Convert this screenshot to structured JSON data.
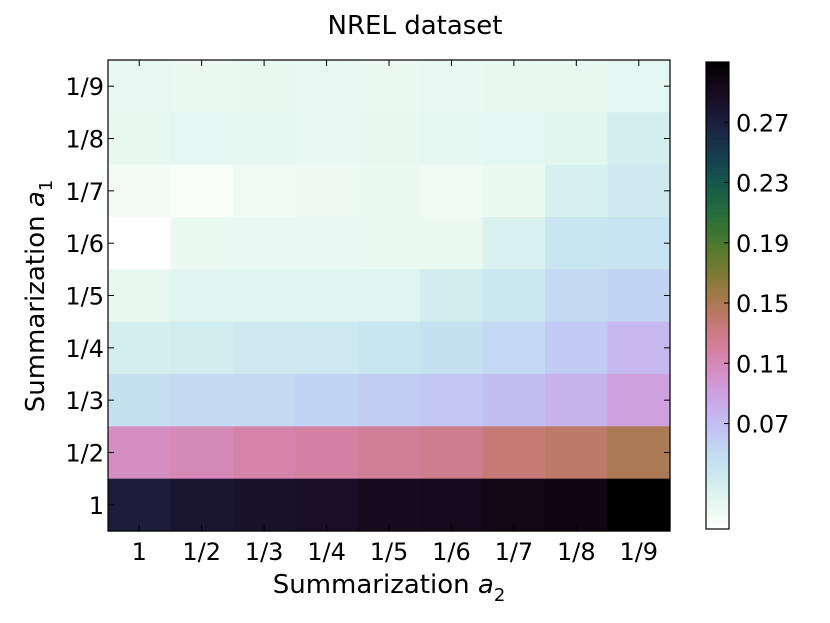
{
  "chart_data": {
    "type": "heatmap",
    "title": "NREL dataset",
    "xlabel": {
      "prefix": "Summarization ",
      "var": "a",
      "sub": "2"
    },
    "ylabel": {
      "prefix": "Summarization ",
      "var": "a",
      "sub": "1"
    },
    "x_categories": [
      "1",
      "1/2",
      "1/3",
      "1/4",
      "1/5",
      "1/6",
      "1/7",
      "1/8",
      "1/9"
    ],
    "y_categories": [
      "1/9",
      "1/8",
      "1/7",
      "1/6",
      "1/5",
      "1/4",
      "1/3",
      "1/2",
      "1"
    ],
    "values": [
      [
        0.015,
        0.014,
        0.016,
        0.015,
        0.014,
        0.015,
        0.016,
        0.016,
        0.018
      ],
      [
        0.016,
        0.018,
        0.017,
        0.015,
        0.016,
        0.017,
        0.018,
        0.019,
        0.03
      ],
      [
        0.008,
        0.004,
        0.01,
        0.012,
        0.013,
        0.01,
        0.013,
        0.028,
        0.035
      ],
      [
        0.001,
        0.014,
        0.015,
        0.015,
        0.014,
        0.014,
        0.025,
        0.04,
        0.042
      ],
      [
        0.016,
        0.02,
        0.021,
        0.02,
        0.021,
        0.032,
        0.038,
        0.05,
        0.055
      ],
      [
        0.03,
        0.033,
        0.036,
        0.036,
        0.04,
        0.045,
        0.052,
        0.062,
        0.075
      ],
      [
        0.045,
        0.05,
        0.05,
        0.055,
        0.06,
        0.065,
        0.07,
        0.078,
        0.09
      ],
      [
        0.105,
        0.11,
        0.115,
        0.118,
        0.122,
        0.126,
        0.135,
        0.14,
        0.15
      ],
      [
        0.272,
        0.278,
        0.282,
        0.285,
        0.29,
        0.292,
        0.295,
        0.298,
        0.31
      ]
    ],
    "colormap": "cubehelix_r",
    "colorbar": {
      "range": [
        0.0,
        0.31
      ],
      "ticks": [
        0.07,
        0.11,
        0.15,
        0.19,
        0.23,
        0.27
      ],
      "tick_labels": [
        "0.07",
        "0.11",
        "0.15",
        "0.19",
        "0.23",
        "0.27"
      ]
    },
    "grid": false
  }
}
